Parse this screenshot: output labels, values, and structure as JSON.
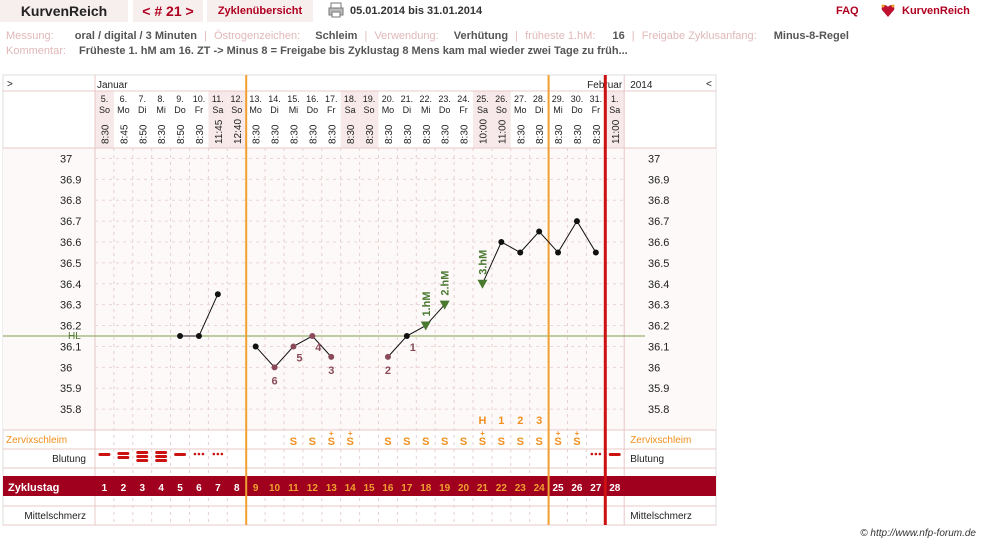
{
  "header": {
    "brand": "KurvenReich",
    "cycle_nav": "< # 21 >",
    "cycle_overview": "Zyklenübersicht",
    "date_range": "05.01.2014 bis 31.01.2014",
    "faq": "FAQ",
    "logo_text": "KurvenReich"
  },
  "info": {
    "messung_label": "Messung:",
    "messung_value": "oral / digital / 3 Minuten",
    "oestrogen_label": "Östrogenzeichen:",
    "oestrogen_value": "Schleim",
    "verwendung_label": "Verwendung:",
    "verwendung_value": "Verhütung",
    "frueheste_label": "früheste 1.hM:",
    "frueheste_value": "16",
    "anfang_label": "Freigabe Zyklusanfang:",
    "anfang_value": "Minus-8-Regel",
    "kommentar_label": "Kommentar:",
    "kommentar_value": "Früheste 1. hM am 16. ZT -> Minus 8 = Freigabe bis Zyklustag 8 Mens kam mal wieder zwei Tage zu früh..."
  },
  "copyright": "© http://www.nfp-forum.de",
  "chart_data": {
    "type": "line",
    "nav_left": ">",
    "nav_right": "<",
    "month_start": "Januar",
    "month_end": "Februar",
    "year": "2014",
    "dates": [
      "5.",
      "6.",
      "7.",
      "8.",
      "9.",
      "10.",
      "11.",
      "12.",
      "13.",
      "14.",
      "15.",
      "16.",
      "17.",
      "18.",
      "19.",
      "20.",
      "21.",
      "22.",
      "23.",
      "24.",
      "25.",
      "26.",
      "27.",
      "28.",
      "29.",
      "30.",
      "31.",
      "1."
    ],
    "weekdays": [
      "So",
      "Mo",
      "Di",
      "Mi",
      "Do",
      "Fr",
      "Sa",
      "So",
      "Mo",
      "Di",
      "Mi",
      "Do",
      "Fr",
      "Sa",
      "So",
      "Mo",
      "Di",
      "Mi",
      "Do",
      "Fr",
      "Sa",
      "So",
      "Mo",
      "Di",
      "Mi",
      "Do",
      "Fr",
      "Sa"
    ],
    "times": [
      "8:30",
      "8:45",
      "8:50",
      "8:30",
      "8:50",
      "8:30",
      "11:45",
      "12:40",
      "8:30",
      "8:30",
      "8:30",
      "8:30",
      "8:30",
      "8:30",
      "8:30",
      "8:30",
      "8:30",
      "8:30",
      "8:30",
      "8:30",
      "10:00",
      "11:00",
      "8:30",
      "8:30",
      "8:30",
      "8:30",
      "8:30",
      "11:00"
    ],
    "weekend_days": [
      1,
      7,
      8,
      14,
      15,
      21,
      22,
      28
    ],
    "ylim": [
      35.7,
      37.05
    ],
    "y_ticks": [
      "37",
      "36.9",
      "36.8",
      "36.7",
      "36.6",
      "36.5",
      "36.4",
      "36.3",
      "36.2",
      "36.1",
      "36",
      "35.9",
      "35.8"
    ],
    "temps": [
      null,
      null,
      null,
      null,
      36.15,
      36.15,
      36.35,
      null,
      36.1,
      36.0,
      36.1,
      36.15,
      36.05,
      null,
      null,
      36.05,
      36.15,
      36.2,
      36.3,
      null,
      36.4,
      36.6,
      36.55,
      36.65,
      36.55,
      36.7,
      36.55,
      null
    ],
    "excluded_days": [
      10,
      11,
      12,
      13,
      16
    ],
    "high_days": [
      18,
      19,
      21
    ],
    "hl_value": 36.15,
    "hl_label": "HL",
    "low_labels": [
      {
        "day": 10,
        "label": "6"
      },
      {
        "day": 11,
        "label": "5"
      },
      {
        "day": 12,
        "label": "4"
      },
      {
        "day": 13,
        "label": "3"
      },
      {
        "day": 16,
        "label": "2"
      },
      {
        "day": 17,
        "label": "1"
      }
    ],
    "high_labels": [
      {
        "day": 18,
        "label": "1.hM"
      },
      {
        "day": 19,
        "label": "2.hM"
      },
      {
        "day": 21,
        "label": "3.hM"
      }
    ],
    "vlines": [
      {
        "after_day": 8,
        "color": "#f0a030"
      },
      {
        "after_day": 24,
        "color": "#f0a030"
      },
      {
        "after_day": 27,
        "color": "#cc1111"
      }
    ],
    "cervix_label": "Zervixschleim",
    "cervix_peak_labels": [
      {
        "day": 21,
        "label": "H"
      },
      {
        "day": 22,
        "label": "1"
      },
      {
        "day": 23,
        "label": "2"
      },
      {
        "day": 24,
        "label": "3"
      }
    ],
    "cervix": [
      {
        "day": 11,
        "label": "S"
      },
      {
        "day": 12,
        "label": "S"
      },
      {
        "day": 13,
        "label": "S+"
      },
      {
        "day": 14,
        "label": "S+"
      },
      {
        "day": 16,
        "label": "S"
      },
      {
        "day": 17,
        "label": "S"
      },
      {
        "day": 18,
        "label": "S"
      },
      {
        "day": 19,
        "label": "S"
      },
      {
        "day": 20,
        "label": "S"
      },
      {
        "day": 21,
        "label": "S+"
      },
      {
        "day": 22,
        "label": "S"
      },
      {
        "day": 23,
        "label": "S"
      },
      {
        "day": 24,
        "label": "S"
      },
      {
        "day": 25,
        "label": "S+"
      },
      {
        "day": 26,
        "label": "S+"
      }
    ],
    "bleeding_label": "Blutung",
    "bleeding": [
      2,
      3,
      4,
      4,
      2,
      1,
      1,
      0,
      0,
      0,
      0,
      0,
      0,
      0,
      0,
      0,
      0,
      0,
      0,
      0,
      0,
      0,
      0,
      0,
      0,
      0,
      1,
      2
    ],
    "cycle_label": "Zyklustag",
    "cycle_days": [
      "1",
      "2",
      "3",
      "4",
      "5",
      "6",
      "7",
      "8",
      "9",
      "10",
      "11",
      "12",
      "13",
      "14",
      "15",
      "16",
      "17",
      "18",
      "19",
      "20",
      "21",
      "22",
      "23",
      "24",
      "25",
      "26",
      "27",
      "28"
    ],
    "mittelschmerz_label": "Mittelschmerz",
    "colors": {
      "accent": "#a0001e",
      "orange": "#f0a030",
      "red": "#cc1111",
      "green": "#4a7a30",
      "excluded": "#8a4a5a",
      "grid": "#e8c8c8"
    }
  }
}
